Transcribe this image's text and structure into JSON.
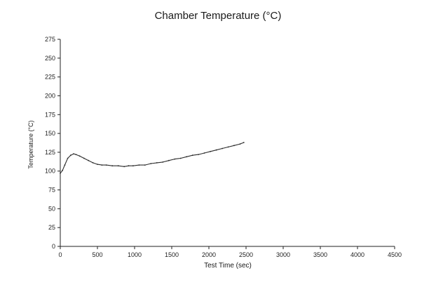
{
  "chart_data": {
    "type": "line",
    "title": "Chamber Temperature (°C)",
    "xlabel": "Test Time (sec)",
    "ylabel": "Temperature (°C)",
    "xlim": [
      0,
      4500
    ],
    "ylim": [
      0,
      275
    ],
    "xticks": [
      0,
      500,
      1000,
      1500,
      2000,
      2500,
      3000,
      3500,
      4000,
      4500
    ],
    "yticks": [
      0,
      25,
      50,
      75,
      100,
      125,
      150,
      175,
      200,
      225,
      250,
      275
    ],
    "grid": false,
    "series": [
      {
        "color": "#2b2b2b",
        "x": [
          0,
          30,
          60,
          100,
          140,
          180,
          210,
          260,
          320,
          380,
          440,
          500,
          560,
          620,
          700,
          780,
          860,
          920,
          980,
          1060,
          1140,
          1220,
          1300,
          1380,
          1460,
          1540,
          1620,
          1700,
          1780,
          1860,
          1940,
          2020,
          2100,
          2180,
          2260,
          2340,
          2420,
          2470
        ],
        "y": [
          97,
          101,
          108,
          117,
          121,
          123,
          122,
          120,
          117,
          114,
          111,
          109,
          108,
          108,
          107,
          107,
          106,
          107,
          107,
          108,
          108,
          110,
          111,
          112,
          114,
          116,
          117,
          119,
          121,
          122,
          124,
          126,
          128,
          130,
          132,
          134,
          136,
          138
        ]
      }
    ]
  }
}
